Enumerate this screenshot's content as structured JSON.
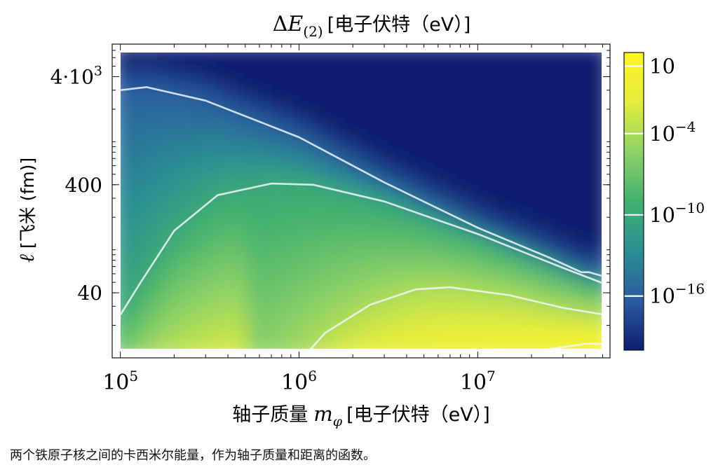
{
  "chart_data": {
    "type": "heatmap",
    "title": "ΔE(2) [电子伏特（eV）]",
    "title_parts": {
      "delta": "Δ",
      "symbol": "E",
      "sub": "(2)",
      "unit": "[电子伏特（eV）]"
    },
    "xlabel": "轴子质量 mφ [电子伏特（eV）]",
    "xlabel_parts": {
      "prefix": "轴子质量",
      "symbol": "m",
      "sub": "φ",
      "unit": "[电子伏特（eV）]"
    },
    "ylabel": "ℓ [飞米 (fm)]",
    "ylabel_parts": {
      "symbol": "ℓ",
      "unit": "[飞米 (fm)]"
    },
    "x_scale": "log",
    "y_scale": "log",
    "xlim": [
      90000,
      55000000
    ],
    "ylim": [
      10,
      8000
    ],
    "x_ticks": [
      {
        "value": 100000,
        "base": "10",
        "exp": "5"
      },
      {
        "value": 1000000,
        "base": "10",
        "exp": "6"
      },
      {
        "value": 10000000,
        "base": "10",
        "exp": "7"
      }
    ],
    "y_ticks": [
      {
        "value": 40,
        "label": "40"
      },
      {
        "value": 400,
        "label": "400"
      },
      {
        "value": 4000,
        "label": "4·10",
        "exp": "3"
      }
    ],
    "colorbar": {
      "scale": "log",
      "range": [
        1e-20,
        100
      ],
      "colormap": [
        "#0f1f6e",
        "#2a5ba0",
        "#2a8f93",
        "#42b16f",
        "#8ed267",
        "#e4ed3d",
        "#fdf520"
      ],
      "ticks": [
        {
          "value": 10,
          "base": "10",
          "exp": ""
        },
        {
          "value": 0.0001,
          "base": "10",
          "exp": "−4"
        },
        {
          "value": 1e-10,
          "base": "10",
          "exp": "−10"
        },
        {
          "value": 1e-16,
          "base": "10",
          "exp": "−16"
        }
      ]
    },
    "contours": [
      {
        "level": 1e-16,
        "points": [
          [
            100000,
            3000
          ],
          [
            140000,
            3200
          ],
          [
            300000,
            2400
          ],
          [
            1000000,
            1100
          ],
          [
            3000000,
            420
          ],
          [
            10000000,
            160
          ],
          [
            25000000,
            85
          ],
          [
            38000000,
            62
          ],
          [
            42000000,
            62
          ],
          [
            52000000,
            56
          ]
        ]
      },
      {
        "level": 1e-10,
        "points": [
          [
            100000,
            25
          ],
          [
            130000,
            50
          ],
          [
            200000,
            150
          ],
          [
            350000,
            320
          ],
          [
            700000,
            410
          ],
          [
            1200000,
            400
          ],
          [
            3000000,
            280
          ],
          [
            10000000,
            140
          ],
          [
            30000000,
            68
          ],
          [
            52000000,
            48
          ]
        ]
      },
      {
        "level": 0.0001,
        "points": [
          [
            1050000,
            10
          ],
          [
            1400000,
            17
          ],
          [
            2500000,
            31
          ],
          [
            4500000,
            43
          ],
          [
            7000000,
            45
          ],
          [
            15000000,
            38
          ],
          [
            30000000,
            29
          ],
          [
            52000000,
            25
          ]
        ]
      },
      {
        "level": 10,
        "points": [
          [
            15000000,
            10
          ],
          [
            25000000,
            12
          ],
          [
            40000000,
            13.5
          ],
          [
            52000000,
            13.5
          ]
        ]
      }
    ]
  },
  "caption": "两个铁原子核之间的卡西米尔能量，作为轴子质量和距离的函数。"
}
